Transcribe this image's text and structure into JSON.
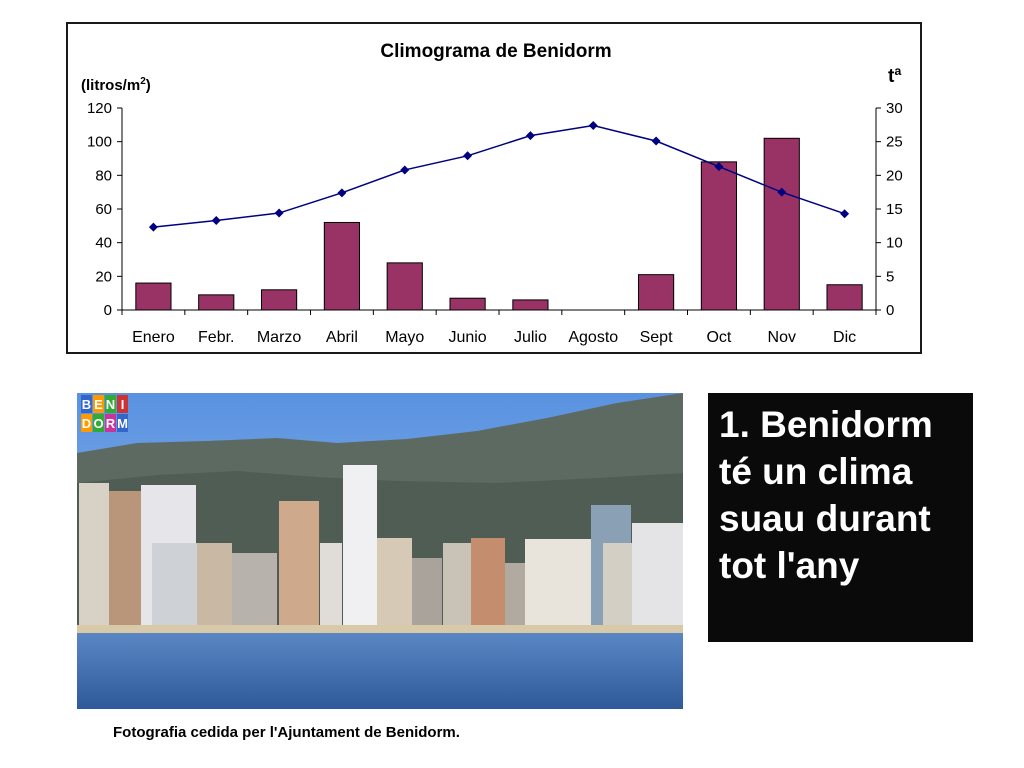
{
  "chart_data": {
    "type": "bar+line",
    "title": "Climograma de Benidorm",
    "ylabel_left_prefix": "(litros/m",
    "ylabel_left_sup": "2",
    "ylabel_left_suffix": ")",
    "ylabel_right": "tª",
    "categories": [
      "Enero",
      "Febr.",
      "Marzo",
      "Abril",
      "Mayo",
      "Junio",
      "Julio",
      "Agosto",
      "Sept",
      "Oct",
      "Nov",
      "Dic"
    ],
    "series": [
      {
        "type": "bar",
        "axis": "left",
        "values": [
          16,
          9,
          12,
          52,
          28,
          7,
          6,
          0,
          21,
          88,
          102,
          15
        ],
        "color": "#993366"
      },
      {
        "type": "line",
        "axis": "right",
        "values": [
          12.3,
          13.3,
          14.4,
          17.4,
          20.8,
          22.9,
          25.9,
          27.4,
          25.1,
          21.3,
          17.5,
          14.3
        ],
        "color": "#000080"
      }
    ],
    "ylim_left": [
      0,
      120
    ],
    "yticks_left": [
      0,
      20,
      40,
      60,
      80,
      100,
      120
    ],
    "ylim_right": [
      0,
      30
    ],
    "yticks_right": [
      0,
      5,
      10,
      15,
      20,
      25,
      30
    ],
    "grid": false,
    "legend": "none"
  },
  "logo": {
    "letters": [
      "B",
      "E",
      "N",
      "I",
      "D",
      "O",
      "R",
      "M"
    ],
    "colors": [
      "#3366cc",
      "#ff9900",
      "#33aa33",
      "#cc3333",
      "#ff9900",
      "#33aa33",
      "#cc3399",
      "#3366cc"
    ]
  },
  "caption": {
    "text": "1. Benidorm té un clima suau durant tot l'any"
  },
  "photo_credit": "Fotografia cedida per l'Ajuntament de Benidorm."
}
